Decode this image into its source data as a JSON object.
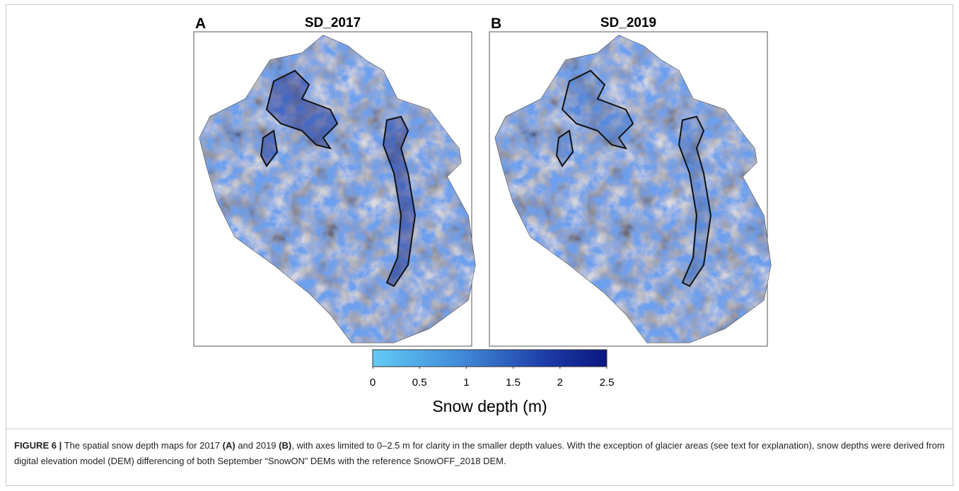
{
  "panels": [
    {
      "letter": "A",
      "title": "SD_2017"
    },
    {
      "letter": "B",
      "title": "SD_2019"
    }
  ],
  "colorbar": {
    "label": "Snow depth (m)",
    "lim": [
      0,
      2.5
    ],
    "ticks": [
      0,
      0.5,
      1,
      1.5,
      2,
      2.5
    ]
  },
  "caption": {
    "label": "FIGURE 6 |",
    "parts": [
      {
        "text": "The spatial snow depth maps for 2017",
        "bold": false
      },
      {
        "text": "(A)",
        "bold": true
      },
      {
        "text": "and 2019",
        "bold": false
      },
      {
        "text": "(B)",
        "bold": true
      },
      {
        "text": ", with axes limited to 0–2.5 m for clarity in the smaller depth values. With the exception of glacier areas (see text for explanation), snow depths were derived from digital elevation model (DEM) differencing of both September “SnowON” DEMs with the reference SnowOFF_2018 DEM.",
        "bold": false
      }
    ]
  }
}
